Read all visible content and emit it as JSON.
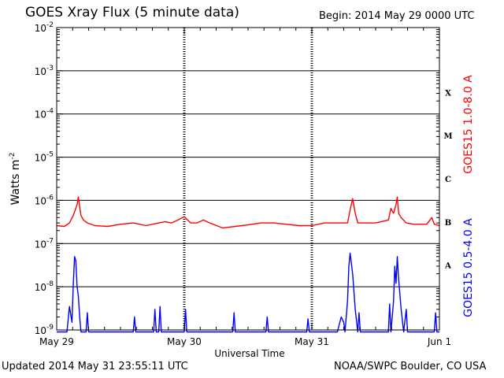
{
  "header": {
    "title": "GOES Xray Flux (5 minute data)",
    "begin": "Begin:  2014 May 29 0000 UTC"
  },
  "footer": {
    "updated": "Updated 2014 May 31 23:55:11 UTC",
    "credit": "NOAA/SWPC Boulder, CO USA"
  },
  "colors": {
    "long_channel": "#ff0000",
    "short_channel": "#0000ff",
    "axes": "#000000"
  },
  "chart_data": {
    "type": "line",
    "title": "GOES Xray Flux (5 minute data)",
    "ylabel": "Watts m",
    "ylabel_sup": "-2",
    "xlabel": "Universal Time",
    "y_scale": "log",
    "ylim": [
      1e-09,
      0.01
    ],
    "xlim": [
      0,
      3
    ],
    "x_tick_labels": [
      "May 29",
      "May 30",
      "May 31",
      "Jun 1"
    ],
    "x_ticks": [
      0,
      1,
      2,
      3
    ],
    "y_ticks": [
      {
        "base": "10",
        "exp": "-9"
      },
      {
        "base": "10",
        "exp": "-8"
      },
      {
        "base": "10",
        "exp": "-7"
      },
      {
        "base": "10",
        "exp": "-6"
      },
      {
        "base": "10",
        "exp": "-5"
      },
      {
        "base": "10",
        "exp": "-4"
      },
      {
        "base": "10",
        "exp": "-3"
      },
      {
        "base": "10",
        "exp": "-2"
      }
    ],
    "flare_classes": [
      "A",
      "B",
      "C",
      "M",
      "X"
    ],
    "grid": true,
    "series": [
      {
        "name": "GOES15 1.0-8.0 A",
        "color": "#ff0000",
        "x": [
          0.0,
          0.06,
          0.1,
          0.13,
          0.16,
          0.17,
          0.18,
          0.19,
          0.21,
          0.24,
          0.3,
          0.4,
          0.5,
          0.6,
          0.7,
          0.8,
          0.85,
          0.9,
          0.95,
          1.0,
          1.05,
          1.1,
          1.15,
          1.2,
          1.3,
          1.4,
          1.5,
          1.6,
          1.7,
          1.8,
          1.9,
          2.0,
          2.1,
          2.2,
          2.28,
          2.3,
          2.32,
          2.34,
          2.36,
          2.4,
          2.5,
          2.6,
          2.62,
          2.64,
          2.66,
          2.67,
          2.68,
          2.7,
          2.74,
          2.8,
          2.9,
          2.94,
          2.96,
          3.0
        ],
        "y": [
          2.6e-07,
          2.5e-07,
          3e-07,
          4.5e-07,
          8e-07,
          1.2e-06,
          7e-07,
          4.5e-07,
          3.5e-07,
          3e-07,
          2.6e-07,
          2.5e-07,
          2.8e-07,
          3e-07,
          2.6e-07,
          3e-07,
          3.2e-07,
          3e-07,
          3.5e-07,
          4.2e-07,
          3e-07,
          3e-07,
          3.5e-07,
          3e-07,
          2.3e-07,
          2.5e-07,
          2.7e-07,
          3e-07,
          3e-07,
          2.8e-07,
          2.6e-07,
          2.6e-07,
          3e-07,
          3e-07,
          3e-07,
          6e-07,
          1.1e-06,
          5e-07,
          3e-07,
          3e-07,
          3e-07,
          3.5e-07,
          6.5e-07,
          5e-07,
          8e-07,
          1.2e-06,
          5e-07,
          4e-07,
          3e-07,
          2.8e-07,
          2.8e-07,
          4e-07,
          2.8e-07,
          2.6e-07
        ]
      },
      {
        "name": "GOES15 0.5-4.0 A",
        "color": "#0000ff",
        "x": [
          0.0,
          0.08,
          0.1,
          0.12,
          0.13,
          0.14,
          0.15,
          0.16,
          0.17,
          0.18,
          0.19,
          0.2,
          0.23,
          0.24,
          0.25,
          0.6,
          0.61,
          0.62,
          0.76,
          0.77,
          0.78,
          0.8,
          0.81,
          0.82,
          1.0,
          1.01,
          1.02,
          1.38,
          1.39,
          1.4,
          1.64,
          1.65,
          1.66,
          1.96,
          1.97,
          1.98,
          2.2,
          2.23,
          2.25,
          2.26,
          2.28,
          2.29,
          2.3,
          2.32,
          2.34,
          2.36,
          2.37,
          2.38,
          2.6,
          2.61,
          2.62,
          2.64,
          2.65,
          2.66,
          2.67,
          2.68,
          2.7,
          2.72,
          2.74,
          2.75,
          2.76,
          2.96,
          2.97,
          2.98,
          3.0
        ],
        "y": [
          9e-10,
          9e-10,
          3.5e-09,
          1.5e-09,
          1.2e-08,
          5e-08,
          4e-08,
          1e-08,
          6e-09,
          2e-09,
          9e-10,
          9e-10,
          9e-10,
          2.5e-09,
          9e-10,
          9e-10,
          2e-09,
          9e-10,
          9e-10,
          3e-09,
          9e-10,
          9e-10,
          3.5e-09,
          9e-10,
          9e-10,
          3e-09,
          9e-10,
          9e-10,
          2.5e-09,
          9e-10,
          9e-10,
          2e-09,
          9e-10,
          9e-10,
          1.8e-09,
          9e-10,
          9e-10,
          2e-09,
          1.5e-09,
          9e-10,
          5e-09,
          3e-08,
          6e-08,
          2e-08,
          3e-09,
          9e-10,
          2.5e-09,
          9e-10,
          9e-10,
          4e-09,
          9e-10,
          4.5e-09,
          3e-08,
          1.2e-08,
          5e-08,
          1.5e-08,
          3e-09,
          9e-10,
          3e-09,
          9e-10,
          9e-10,
          9e-10,
          2.5e-09,
          9e-10,
          9e-10
        ]
      }
    ]
  }
}
